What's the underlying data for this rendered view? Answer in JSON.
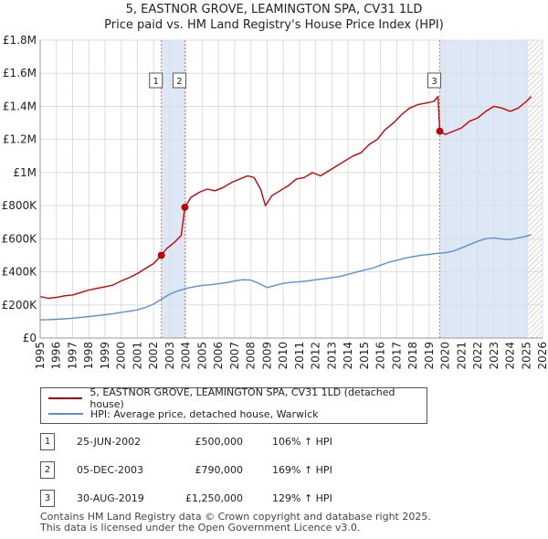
{
  "title_line1": "5, EASTNOR GROVE, LEAMINGTON SPA, CV31 1LD",
  "title_line2": "Price paid vs. HM Land Registry's House Price Index (HPI)",
  "legend": {
    "property_label": "5, EASTNOR GROVE, LEAMINGTON SPA, CV31 1LD (detached house)",
    "hpi_label": "HPI: Average price, detached house, Warwick"
  },
  "transactions": [
    {
      "num": "1",
      "date": "25-JUN-2002",
      "price": "£500,000",
      "hpi": "106% ↑ HPI"
    },
    {
      "num": "2",
      "date": "05-DEC-2003",
      "price": "£790,000",
      "hpi": "169% ↑ HPI"
    },
    {
      "num": "3",
      "date": "30-AUG-2019",
      "price": "£1,250,000",
      "hpi": "129% ↑ HPI"
    }
  ],
  "footer_line1": "Contains HM Land Registry data © Crown copyright and database right 2025.",
  "footer_line2": "This data is licensed under the Open Government Licence v3.0.",
  "colors": {
    "property": "#cc0000",
    "hpi": "#5b8fd0",
    "highlight": "#dde8f7",
    "grid": "#dddddd",
    "marker_line": "#e07070",
    "hatch": "#bbbbbb"
  },
  "chart_data": {
    "type": "line",
    "title": "Price paid vs. HM Land Registry's House Price Index (HPI)",
    "xlabel": "",
    "ylabel": "",
    "xlim": [
      1995,
      2026
    ],
    "ylim": [
      0,
      1800000
    ],
    "x_ticks": [
      1995,
      1996,
      1997,
      1998,
      1999,
      2000,
      2001,
      2002,
      2003,
      2004,
      2005,
      2006,
      2007,
      2008,
      2009,
      2010,
      2011,
      2012,
      2013,
      2014,
      2015,
      2016,
      2017,
      2018,
      2019,
      2020,
      2021,
      2022,
      2023,
      2024,
      2025,
      2026
    ],
    "y_ticks": [
      0,
      200000,
      400000,
      600000,
      800000,
      1000000,
      1200000,
      1400000,
      1600000,
      1800000
    ],
    "y_tick_labels": [
      "£0",
      "£200K",
      "£400K",
      "£600K",
      "£800K",
      "£1M",
      "£1.2M",
      "£1.4M",
      "£1.6M",
      "£1.8M"
    ],
    "highlight_ranges": [
      [
        2002.48,
        2003.93
      ],
      [
        2019.66,
        2025.1
      ]
    ],
    "projection_start": 2025.1,
    "series": [
      {
        "name": "5, EASTNOR GROVE, LEAMINGTON SPA, CV31 1LD (detached house)",
        "x": [
          1995,
          1995.5,
          1996,
          1996.5,
          1997,
          1997.5,
          1998,
          1998.5,
          1999,
          1999.5,
          2000,
          2000.5,
          2001,
          2001.5,
          2002,
          2002.48,
          2002.8,
          2003.3,
          2003.7,
          2003.93,
          2004.3,
          2004.8,
          2005.3,
          2005.8,
          2006.3,
          2006.8,
          2007.3,
          2007.8,
          2008.2,
          2008.6,
          2008.9,
          2009.3,
          2009.8,
          2010.3,
          2010.8,
          2011.3,
          2011.8,
          2012.3,
          2012.8,
          2013.3,
          2013.8,
          2014.3,
          2014.8,
          2015.3,
          2015.8,
          2016.3,
          2016.8,
          2017.3,
          2017.8,
          2018.3,
          2018.8,
          2019.3,
          2019.55,
          2019.66,
          2020.0,
          2020.5,
          2021.0,
          2021.5,
          2022.0,
          2022.5,
          2023.0,
          2023.5,
          2024.0,
          2024.5,
          2025.0,
          2025.3
        ],
        "values": [
          250000,
          240000,
          245000,
          255000,
          260000,
          275000,
          290000,
          300000,
          310000,
          320000,
          345000,
          365000,
          390000,
          420000,
          450000,
          500000,
          540000,
          580000,
          620000,
          790000,
          850000,
          880000,
          900000,
          890000,
          910000,
          940000,
          960000,
          980000,
          970000,
          900000,
          800000,
          860000,
          890000,
          920000,
          960000,
          970000,
          1000000,
          980000,
          1010000,
          1040000,
          1070000,
          1100000,
          1120000,
          1170000,
          1200000,
          1260000,
          1300000,
          1350000,
          1390000,
          1410000,
          1420000,
          1430000,
          1460000,
          1250000,
          1230000,
          1250000,
          1270000,
          1310000,
          1330000,
          1370000,
          1400000,
          1390000,
          1370000,
          1390000,
          1430000,
          1460000
        ]
      },
      {
        "name": "HPI: Average price, detached house, Warwick",
        "x": [
          1995,
          1995.5,
          1996,
          1996.5,
          1997,
          1997.5,
          1998,
          1998.5,
          1999,
          1999.5,
          2000,
          2000.5,
          2001,
          2001.5,
          2002,
          2002.5,
          2003,
          2003.5,
          2004,
          2004.5,
          2005,
          2005.5,
          2006,
          2006.5,
          2007,
          2007.5,
          2008,
          2008.5,
          2009,
          2009.5,
          2010,
          2010.5,
          2011,
          2011.5,
          2012,
          2012.5,
          2013,
          2013.5,
          2014,
          2014.5,
          2015,
          2015.5,
          2016,
          2016.5,
          2017,
          2017.5,
          2018,
          2018.5,
          2019,
          2019.5,
          2020,
          2020.5,
          2021,
          2021.5,
          2022,
          2022.5,
          2023,
          2023.5,
          2024,
          2024.5,
          2025,
          2025.3
        ],
        "values": [
          110000,
          111000,
          113000,
          116000,
          120000,
          125000,
          130000,
          135000,
          141000,
          147000,
          155000,
          162000,
          170000,
          185000,
          205000,
          235000,
          265000,
          285000,
          300000,
          310000,
          318000,
          322000,
          328000,
          335000,
          345000,
          352000,
          350000,
          330000,
          305000,
          318000,
          330000,
          336000,
          340000,
          345000,
          352000,
          358000,
          365000,
          372000,
          385000,
          398000,
          410000,
          422000,
          440000,
          458000,
          470000,
          482000,
          492000,
          500000,
          505000,
          512000,
          515000,
          525000,
          545000,
          565000,
          585000,
          600000,
          605000,
          598000,
          595000,
          605000,
          615000,
          625000
        ]
      }
    ],
    "markers": [
      {
        "label": "1",
        "x": 2002.48,
        "y": 500000
      },
      {
        "label": "2",
        "x": 2003.93,
        "y": 790000
      },
      {
        "label": "3",
        "x": 2019.66,
        "y": 1250000
      }
    ]
  }
}
